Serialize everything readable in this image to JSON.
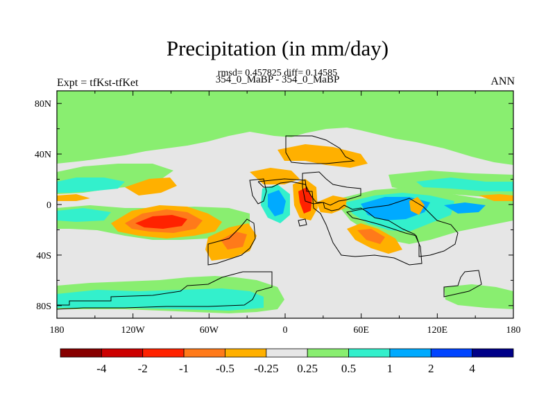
{
  "header": {
    "title": "Precipitation (in mm/day)",
    "stats": "rmsd= 0.457825 diff= 0.14585",
    "subtitle": "354_0_MaBP - 354_0_MaBP",
    "left_label": "Expt = tfKst-tfKet",
    "right_label": "ANN"
  },
  "map": {
    "lon_range": [
      -180,
      180
    ],
    "lat_range": [
      -90,
      90
    ],
    "x_ticks": [
      {
        "value": -180,
        "label": "180"
      },
      {
        "value": -120,
        "label": "120W"
      },
      {
        "value": -60,
        "label": "60W"
      },
      {
        "value": 0,
        "label": "0"
      },
      {
        "value": 60,
        "label": "60E"
      },
      {
        "value": 120,
        "label": "120E"
      },
      {
        "value": 180,
        "label": "180"
      }
    ],
    "y_ticks": [
      {
        "value": 80,
        "label": "80N"
      },
      {
        "value": 40,
        "label": "40N"
      },
      {
        "value": 0,
        "label": "0"
      },
      {
        "value": -40,
        "label": "40S"
      },
      {
        "value": -80,
        "label": "80S"
      }
    ]
  },
  "colorbar": {
    "colors": [
      "#870000",
      "#cc0000",
      "#ff2200",
      "#ff7a1a",
      "#ffb000",
      "#e6e6e6",
      "#89ee70",
      "#33f0cc",
      "#00aaff",
      "#0044ff",
      "#000088"
    ],
    "labels": [
      "-4",
      "-2",
      "-1",
      "-0.5",
      "-0.25",
      "0.25",
      "0.5",
      "1",
      "2",
      "4"
    ]
  },
  "colors": {
    "positive_light": "#89ee70",
    "positive_mid": "#33f0cc",
    "positive_high": "#00aaff",
    "neutral": "#e6e6e6",
    "negative_light": "#ffb000",
    "negative_mid": "#ff7a1a",
    "negative_high": "#ff2200"
  }
}
